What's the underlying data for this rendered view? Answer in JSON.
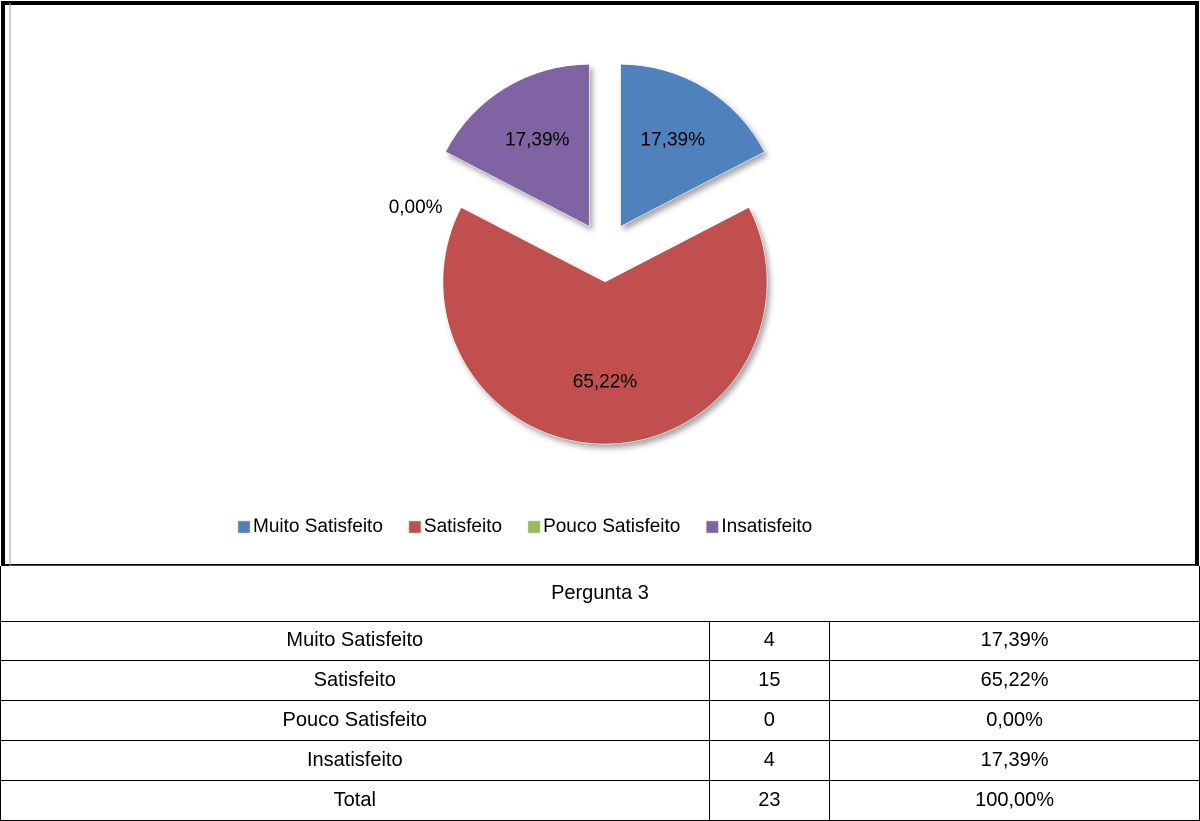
{
  "chart_data": {
    "type": "pie",
    "categories": [
      "Muito Satisfeito",
      "Satisfeito",
      "Pouco Satisfeito",
      "Insatisfeito"
    ],
    "series": [
      {
        "values": [
          17.39,
          65.22,
          0,
          17.39
        ],
        "value_labels": [
          "17,39%",
          "65,22%",
          "0,00%",
          "17,39%"
        ],
        "colors": [
          "#4f81bd",
          "#c0504d",
          "#9bbb59",
          "#8064a2"
        ]
      }
    ],
    "exploded": true,
    "legend": "bottom"
  },
  "table": {
    "title": "Pergunta 3",
    "rows": [
      [
        "Muito Satisfeito",
        "4",
        "17,39%"
      ],
      [
        "Satisfeito",
        "15",
        "65,22%"
      ],
      [
        "Pouco Satisfeito",
        "0",
        "0,00%"
      ],
      [
        "Insatisfeito",
        "4",
        "17,39%"
      ],
      [
        "Total",
        "23",
        "100,00%"
      ]
    ]
  }
}
